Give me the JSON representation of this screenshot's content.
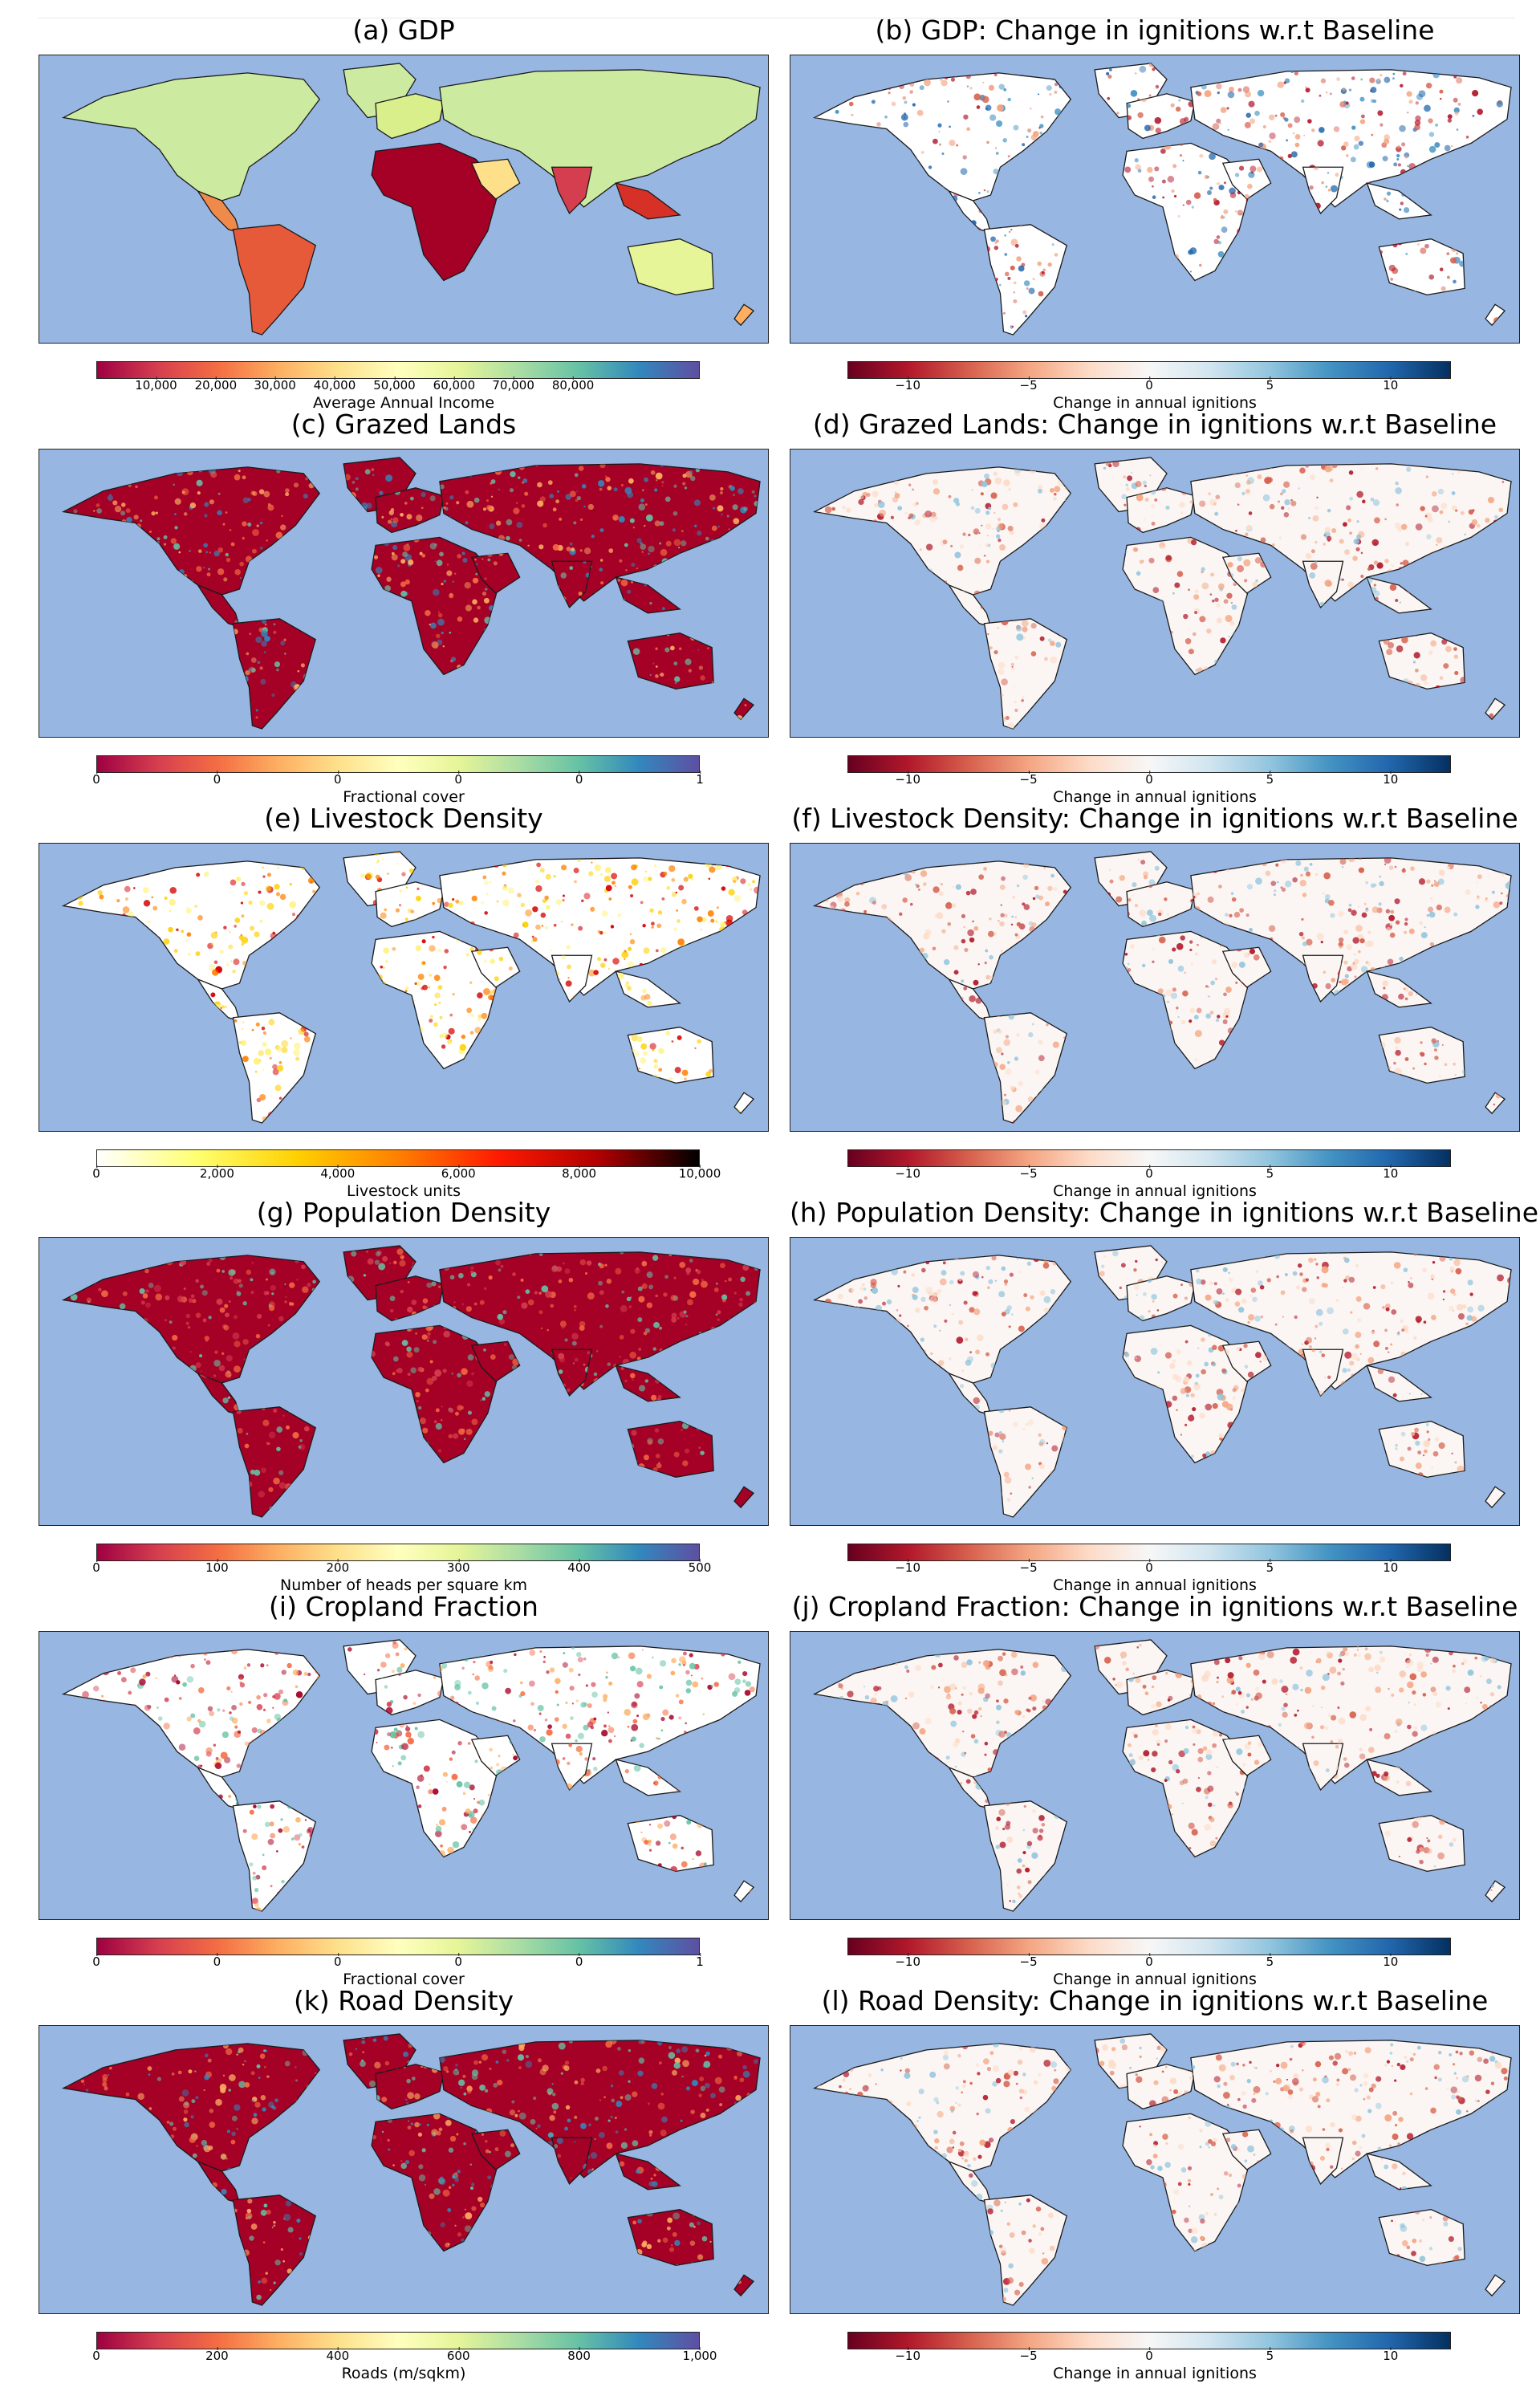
{
  "colors": {
    "ocean": "#97b6e1",
    "spectral_low": "#9e0142",
    "spectral_high": "#5e4fa2",
    "rdbu_low": "#67001f",
    "rdbu_high": "#053061"
  },
  "panels": {
    "a": {
      "title": "(a) GDP",
      "colorbar": "Spectral",
      "label": "Average Annual Income",
      "ticks": [
        "10,000",
        "20,000",
        "30,000",
        "40,000",
        "50,000",
        "60,000",
        "70,000",
        "80,000"
      ],
      "range": [
        0,
        87000
      ]
    },
    "b": {
      "title": "(b) GDP: Change in ignitions w.r.t Baseline",
      "colorbar": "RdBu",
      "label": "Change in annual ignitions",
      "ticks": [
        "−10",
        "−5",
        "0",
        "5",
        "10"
      ],
      "range": [
        -12.5,
        12.5
      ]
    },
    "c": {
      "title": "(c) Grazed Lands",
      "colorbar": "Spectral",
      "label": "Fractional cover",
      "ticks": [
        "0",
        "0",
        "0",
        "0",
        "0",
        "1"
      ],
      "range": [
        0,
        1
      ]
    },
    "d": {
      "title": "(d) Grazed Lands: Change in ignitions w.r.t Baseline",
      "colorbar": "RdBu",
      "label": "Change in annual ignitions",
      "ticks": [
        "−10",
        "−5",
        "0",
        "5",
        "10"
      ],
      "range": [
        -12.5,
        12.5
      ]
    },
    "e": {
      "title": "(e) Livestock Density",
      "colorbar": "hot_r",
      "label": "Livestock units",
      "ticks": [
        "0",
        "2,000",
        "4,000",
        "6,000",
        "8,000",
        "10,000"
      ],
      "range": [
        0,
        10000
      ]
    },
    "f": {
      "title": "(f) Livestock Density: Change in ignitions w.r.t Baseline",
      "colorbar": "RdBu",
      "label": "Change in annual ignitions",
      "ticks": [
        "−10",
        "−5",
        "0",
        "5",
        "10"
      ],
      "range": [
        -12.5,
        12.5
      ]
    },
    "g": {
      "title": "(g) Population Density",
      "colorbar": "Spectral",
      "label": "Number of heads per square km",
      "ticks": [
        "0",
        "100",
        "200",
        "300",
        "400",
        "500"
      ],
      "range": [
        0,
        500
      ]
    },
    "h": {
      "title": "(h) Population Density: Change in ignitions w.r.t Baseline",
      "colorbar": "RdBu",
      "label": "Change in annual ignitions",
      "ticks": [
        "−10",
        "−5",
        "0",
        "5",
        "10"
      ],
      "range": [
        -12.5,
        12.5
      ]
    },
    "i": {
      "title": "(i) Cropland Fraction",
      "colorbar": "Spectral",
      "label": "Fractional cover",
      "ticks": [
        "0",
        "0",
        "0",
        "0",
        "0",
        "1"
      ],
      "range": [
        0,
        1
      ]
    },
    "j": {
      "title": "(j) Cropland Fraction: Change in ignitions w.r.t Baseline",
      "colorbar": "RdBu",
      "label": "Change in annual ignitions",
      "ticks": [
        "−10",
        "−5",
        "0",
        "5",
        "10"
      ],
      "range": [
        -12.5,
        12.5
      ]
    },
    "k": {
      "title": "(k) Road Density",
      "colorbar": "Spectral",
      "label": "Roads (m/sqkm)",
      "ticks": [
        "0",
        "200",
        "400",
        "600",
        "800",
        "1,000"
      ],
      "range": [
        0,
        1000
      ]
    },
    "l": {
      "title": "(l) Road Density: Change in ignitions w.r.t Baseline",
      "colorbar": "RdBu",
      "label": "Change in annual ignitions",
      "ticks": [
        "−10",
        "−5",
        "0",
        "5",
        "10"
      ],
      "range": [
        -12.5,
        12.5
      ]
    }
  }
}
